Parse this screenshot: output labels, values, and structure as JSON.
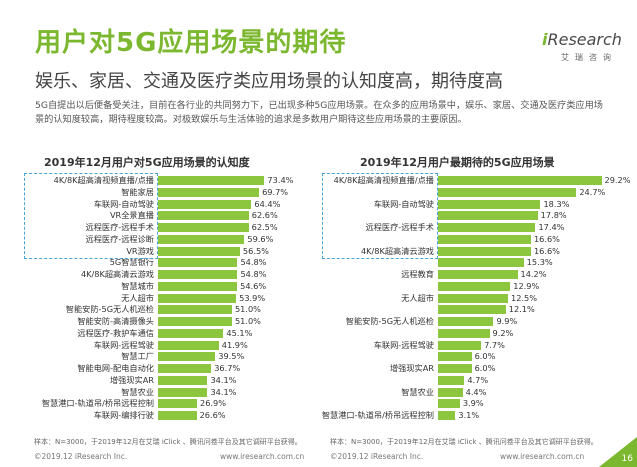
{
  "title": "用户对5G应用场景的期待",
  "logo": {
    "brand": "iResearch",
    "brand_i": "i",
    "brand_rest": "Research",
    "sub": "艾瑞咨询"
  },
  "subtitle": "娱乐、家居、交通及医疗类应用场景的认知度高，期待度高",
  "paragraph": "5G自提出以后便备受关注，目前在各行业的共同努力下，已出现多种5G应用场景。在众多的应用场景中，娱乐、家居、交通及医疗类应用场景的认知度较高，期待程度较高。对极致娱乐与生活体验的追求是多数用户期待这些应用场景的主要原因。",
  "chart_data": [
    {
      "type": "bar",
      "orientation": "horizontal",
      "title": "2019年12月用户对5G应用场景的认知度",
      "categories": [
        "4K/8K超高清视频直播/点播",
        "智能家居",
        "车联网-自动驾驶",
        "VR全景直播",
        "远程医疗-远程手术",
        "远程医疗-远程诊断",
        "VR游戏",
        "5G智慧银行",
        "4K/8K超高清云游戏",
        "智慧城市",
        "无人超市",
        "智能安防-5G无人机巡检",
        "智能安防-高清摄像头",
        "远程医疗-救护车通信",
        "车联网-远程驾驶",
        "智慧工厂",
        "智能电网-配电自动化",
        "增强现实AR",
        "智慧农业",
        "智慧港口-轨道吊/桥吊远程控制",
        "车联网-编排行驶"
      ],
      "values": [
        73.4,
        69.7,
        64.4,
        62.6,
        62.5,
        59.6,
        56.5,
        54.8,
        54.8,
        54.6,
        53.9,
        51.0,
        51.0,
        45.1,
        41.9,
        39.5,
        36.7,
        34.1,
        34.1,
        26.9,
        26.6
      ],
      "value_labels": [
        "73.4%",
        "69.7%",
        "64.4%",
        "62.6%",
        "62.5%",
        "59.6%",
        "56.5%",
        "54.8%",
        "54.8%",
        "54.6%",
        "53.9%",
        "51.0%",
        "51.0%",
        "45.1%",
        "41.9%",
        "39.5%",
        "36.7%",
        "34.1%",
        "34.1%",
        "26.9%",
        "26.6%"
      ],
      "highlight_count": 7,
      "color": "#8cc63f",
      "note": "样本：N=3000，于2019年12月在艾瑞 iClick 、腾讯问卷平台及其它调研平台获得。"
    },
    {
      "type": "bar",
      "orientation": "horizontal",
      "title": "2019年12月用户最期待的5G应用场景",
      "categories": [
        "4K/8K超高清视频直播/点播",
        "智能家居",
        "车联网-自动驾驶",
        "VR全景直播",
        "远程医疗-远程手术",
        "远程医疗-远程诊断",
        "4K/8K超高清云游戏",
        "VR游戏",
        "远程教育",
        "智慧城市",
        "无人超市",
        "5G智慧银行",
        "智能安防-5G无人机巡检",
        "智能安防-高清摄像头",
        "车联网-远程驾驶",
        "智慧工厂",
        "增强现实AR",
        "智能电网-配电自动化",
        "智慧农业",
        "远程医疗-救护车通信",
        "智慧港口-轨道吊/桥吊远程控制"
      ],
      "values": [
        29.2,
        24.7,
        18.3,
        17.8,
        17.4,
        16.6,
        16.6,
        15.3,
        14.2,
        12.9,
        12.5,
        12.1,
        9.9,
        9.2,
        7.7,
        6.0,
        6.0,
        4.7,
        4.4,
        3.9,
        3.1
      ],
      "value_labels": [
        "29.2%",
        "24.7%",
        "18.3%",
        "17.8%",
        "17.4%",
        "16.6%",
        "16.6%",
        "15.3%",
        "14.2%",
        "12.9%",
        "12.5%",
        "12.1%",
        "9.9%",
        "9.2%",
        "7.7%",
        "6.0%",
        "6.0%",
        "4.7%",
        "4.4%",
        "3.9%",
        "3.1%"
      ],
      "label_visible": [
        true,
        false,
        true,
        false,
        true,
        false,
        true,
        false,
        true,
        false,
        true,
        false,
        true,
        false,
        true,
        false,
        true,
        false,
        true,
        false,
        true
      ],
      "highlight_count": 7,
      "color": "#8cc63f",
      "note": "样本：N=3000，于2019年12月在艾瑞 iClick 、腾讯问卷平台及其它调研平台获得。"
    }
  ],
  "footer": {
    "left_copyright": "©2019.12 iResearch Inc.",
    "left_url": "www.iresearch.com.cn",
    "right_copyright": "©2019.12 iResearch Inc.",
    "right_url": "www.iresearch.com.cn",
    "page_number": "16"
  }
}
